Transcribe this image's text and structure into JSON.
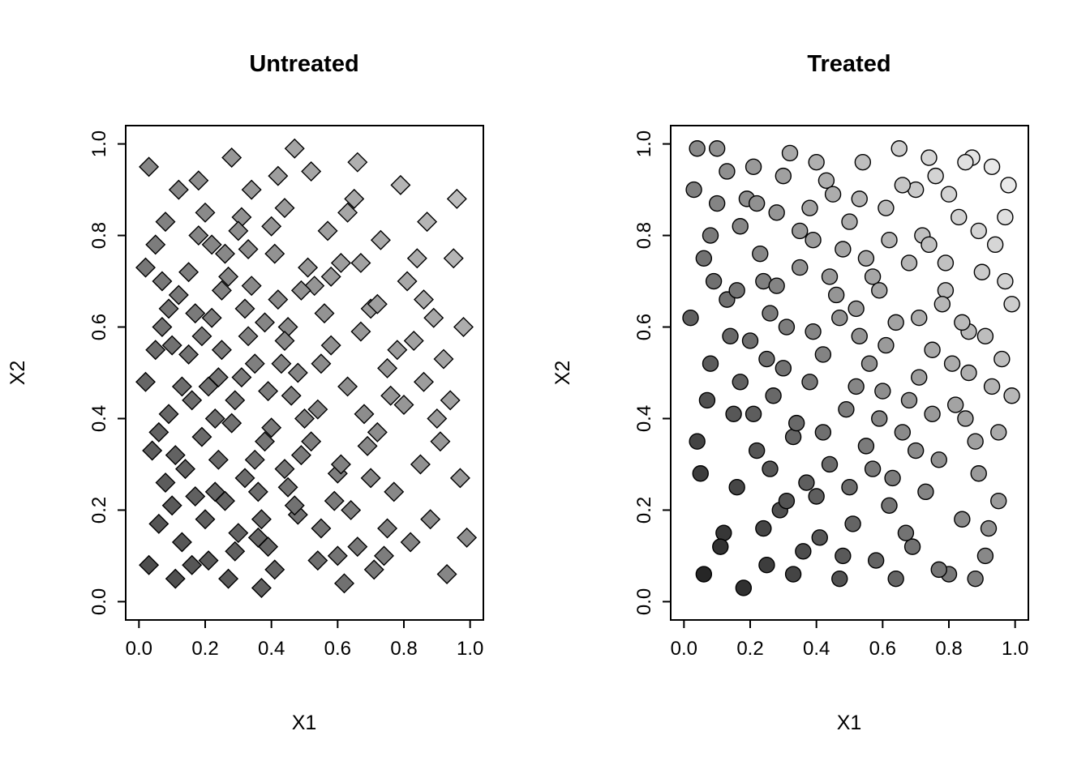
{
  "figure": {
    "background": "#ffffff",
    "outline_color": "#000000"
  },
  "chart_data": [
    {
      "type": "scatter",
      "title": "Untreated",
      "xlabel": "X1",
      "ylabel": "X2",
      "xlim": [
        0,
        1
      ],
      "ylim": [
        0,
        1
      ],
      "x_ticks": [
        "0.0",
        "0.2",
        "0.4",
        "0.6",
        "0.8",
        "1.0"
      ],
      "y_ticks": [
        "0.0",
        "0.2",
        "0.4",
        "0.6",
        "0.8",
        "1.0"
      ],
      "grid": false,
      "legend": "none",
      "marker": "diamond",
      "marker_outline": "#000000",
      "marker_size_px": 11.5,
      "shade_min_gray": 70,
      "shade_max_gray": 200,
      "shade_rule": "gray = shade_min_gray + (shade_max_gray - shade_min_gray) * (x + y) / 2 ; darker points at low x+y, lighter at high x+y",
      "points": [
        [
          0.03,
          0.95
        ],
        [
          0.08,
          0.83
        ],
        [
          0.12,
          0.67
        ],
        [
          0.05,
          0.55
        ],
        [
          0.09,
          0.41
        ],
        [
          0.14,
          0.29
        ],
        [
          0.06,
          0.17
        ],
        [
          0.11,
          0.05
        ],
        [
          0.18,
          0.92
        ],
        [
          0.22,
          0.78
        ],
        [
          0.17,
          0.63
        ],
        [
          0.24,
          0.49
        ],
        [
          0.19,
          0.36
        ],
        [
          0.26,
          0.22
        ],
        [
          0.21,
          0.09
        ],
        [
          0.28,
          0.97
        ],
        [
          0.31,
          0.84
        ],
        [
          0.27,
          0.71
        ],
        [
          0.33,
          0.58
        ],
        [
          0.29,
          0.44
        ],
        [
          0.35,
          0.31
        ],
        [
          0.3,
          0.15
        ],
        [
          0.37,
          0.03
        ],
        [
          0.34,
          0.9
        ],
        [
          0.41,
          0.76
        ],
        [
          0.38,
          0.61
        ],
        [
          0.43,
          0.52
        ],
        [
          0.4,
          0.38
        ],
        [
          0.45,
          0.25
        ],
        [
          0.39,
          0.12
        ],
        [
          0.47,
          0.99
        ],
        [
          0.44,
          0.86
        ],
        [
          0.02,
          0.73
        ],
        [
          0.07,
          0.6
        ],
        [
          0.13,
          0.47
        ],
        [
          0.04,
          0.33
        ],
        [
          0.1,
          0.21
        ],
        [
          0.16,
          0.08
        ],
        [
          0.2,
          0.85
        ],
        [
          0.25,
          0.68
        ],
        [
          0.15,
          0.54
        ],
        [
          0.23,
          0.4
        ],
        [
          0.32,
          0.27
        ],
        [
          0.36,
          0.14
        ],
        [
          0.42,
          0.66
        ],
        [
          0.46,
          0.45
        ],
        [
          0.49,
          0.32
        ],
        [
          0.48,
          0.19
        ],
        [
          0.52,
          0.94
        ],
        [
          0.57,
          0.81
        ],
        [
          0.53,
          0.69
        ],
        [
          0.58,
          0.56
        ],
        [
          0.54,
          0.42
        ],
        [
          0.6,
          0.28
        ],
        [
          0.55,
          0.16
        ],
        [
          0.62,
          0.04
        ],
        [
          0.65,
          0.88
        ],
        [
          0.61,
          0.74
        ],
        [
          0.67,
          0.59
        ],
        [
          0.63,
          0.47
        ],
        [
          0.69,
          0.34
        ],
        [
          0.64,
          0.2
        ],
        [
          0.71,
          0.07
        ],
        [
          0.66,
          0.96
        ],
        [
          0.73,
          0.79
        ],
        [
          0.7,
          0.64
        ],
        [
          0.75,
          0.51
        ],
        [
          0.72,
          0.37
        ],
        [
          0.77,
          0.24
        ],
        [
          0.74,
          0.1
        ],
        [
          0.79,
          0.91
        ],
        [
          0.81,
          0.7
        ],
        [
          0.83,
          0.57
        ],
        [
          0.8,
          0.43
        ],
        [
          0.85,
          0.3
        ],
        [
          0.82,
          0.13
        ],
        [
          0.87,
          0.83
        ],
        [
          0.89,
          0.62
        ],
        [
          0.86,
          0.48
        ],
        [
          0.91,
          0.35
        ],
        [
          0.88,
          0.18
        ],
        [
          0.93,
          0.06
        ],
        [
          0.95,
          0.75
        ],
        [
          0.92,
          0.53
        ],
        [
          0.97,
          0.27
        ],
        [
          0.94,
          0.44
        ],
        [
          0.99,
          0.14
        ],
        [
          0.96,
          0.88
        ],
        [
          0.05,
          0.78
        ],
        [
          0.12,
          0.9
        ],
        [
          0.08,
          0.26
        ],
        [
          0.15,
          0.72
        ],
        [
          0.03,
          0.08
        ],
        [
          0.19,
          0.58
        ],
        [
          0.24,
          0.31
        ],
        [
          0.09,
          0.64
        ],
        [
          0.27,
          0.05
        ],
        [
          0.21,
          0.47
        ],
        [
          0.3,
          0.81
        ],
        [
          0.17,
          0.23
        ],
        [
          0.34,
          0.69
        ],
        [
          0.25,
          0.55
        ],
        [
          0.38,
          0.35
        ],
        [
          0.29,
          0.11
        ],
        [
          0.42,
          0.93
        ],
        [
          0.33,
          0.77
        ],
        [
          0.45,
          0.6
        ],
        [
          0.37,
          0.18
        ],
        [
          0.48,
          0.5
        ],
        [
          0.41,
          0.07
        ],
        [
          0.51,
          0.73
        ],
        [
          0.44,
          0.29
        ],
        [
          0.56,
          0.63
        ],
        [
          0.5,
          0.4
        ],
        [
          0.59,
          0.22
        ],
        [
          0.54,
          0.09
        ],
        [
          0.63,
          0.85
        ],
        [
          0.58,
          0.71
        ],
        [
          0.68,
          0.41
        ],
        [
          0.61,
          0.3
        ],
        [
          0.72,
          0.65
        ],
        [
          0.66,
          0.12
        ],
        [
          0.76,
          0.45
        ],
        [
          0.7,
          0.27
        ],
        [
          0.84,
          0.75
        ],
        [
          0.78,
          0.55
        ],
        [
          0.9,
          0.4
        ],
        [
          0.98,
          0.6
        ],
        [
          0.06,
          0.37
        ],
        [
          0.13,
          0.13
        ],
        [
          0.22,
          0.62
        ],
        [
          0.31,
          0.49
        ],
        [
          0.4,
          0.82
        ],
        [
          0.49,
          0.68
        ],
        [
          0.07,
          0.7
        ],
        [
          0.16,
          0.44
        ],
        [
          0.26,
          0.76
        ],
        [
          0.35,
          0.52
        ],
        [
          0.11,
          0.32
        ],
        [
          0.2,
          0.18
        ],
        [
          0.28,
          0.39
        ],
        [
          0.36,
          0.24
        ],
        [
          0.44,
          0.57
        ],
        [
          0.52,
          0.35
        ],
        [
          0.02,
          0.48
        ],
        [
          0.1,
          0.56
        ],
        [
          0.18,
          0.8
        ],
        [
          0.23,
          0.24
        ],
        [
          0.32,
          0.64
        ],
        [
          0.39,
          0.46
        ],
        [
          0.47,
          0.21
        ],
        [
          0.55,
          0.52
        ],
        [
          0.6,
          0.1
        ],
        [
          0.67,
          0.74
        ],
        [
          0.75,
          0.16
        ],
        [
          0.86,
          0.66
        ]
      ]
    },
    {
      "type": "scatter",
      "title": "Treated",
      "xlabel": "X1",
      "ylabel": "X2",
      "xlim": [
        0,
        1
      ],
      "ylim": [
        0,
        1
      ],
      "x_ticks": [
        "0.0",
        "0.2",
        "0.4",
        "0.6",
        "0.8",
        "1.0"
      ],
      "y_ticks": [
        "0.0",
        "0.2",
        "0.4",
        "0.6",
        "0.8",
        "1.0"
      ],
      "grid": false,
      "legend": "none",
      "marker": "circle",
      "marker_outline": "#000000",
      "marker_size_px": 9.5,
      "shade_min_gray": 25,
      "shade_max_gray": 245,
      "shade_rule": "gray = shade_min_gray + (shade_max_gray - shade_min_gray) * (x + y) / 2 ; nearly black points at low x+y, nearly white at high x+y",
      "points": [
        [
          0.04,
          0.99
        ],
        [
          0.1,
          0.87
        ],
        [
          0.06,
          0.75
        ],
        [
          0.13,
          0.66
        ],
        [
          0.08,
          0.52
        ],
        [
          0.15,
          0.41
        ],
        [
          0.05,
          0.28
        ],
        [
          0.12,
          0.15
        ],
        [
          0.18,
          0.03
        ],
        [
          0.21,
          0.95
        ],
        [
          0.17,
          0.82
        ],
        [
          0.24,
          0.7
        ],
        [
          0.2,
          0.57
        ],
        [
          0.27,
          0.45
        ],
        [
          0.22,
          0.33
        ],
        [
          0.29,
          0.2
        ],
        [
          0.25,
          0.08
        ],
        [
          0.32,
          0.98
        ],
        [
          0.28,
          0.85
        ],
        [
          0.35,
          0.73
        ],
        [
          0.31,
          0.6
        ],
        [
          0.38,
          0.48
        ],
        [
          0.33,
          0.36
        ],
        [
          0.4,
          0.23
        ],
        [
          0.36,
          0.11
        ],
        [
          0.43,
          0.92
        ],
        [
          0.39,
          0.79
        ],
        [
          0.46,
          0.67
        ],
        [
          0.42,
          0.54
        ],
        [
          0.49,
          0.42
        ],
        [
          0.44,
          0.3
        ],
        [
          0.51,
          0.17
        ],
        [
          0.47,
          0.05
        ],
        [
          0.54,
          0.96
        ],
        [
          0.5,
          0.83
        ],
        [
          0.57,
          0.71
        ],
        [
          0.53,
          0.58
        ],
        [
          0.6,
          0.46
        ],
        [
          0.55,
          0.34
        ],
        [
          0.62,
          0.21
        ],
        [
          0.58,
          0.09
        ],
        [
          0.65,
          0.99
        ],
        [
          0.61,
          0.86
        ],
        [
          0.68,
          0.74
        ],
        [
          0.64,
          0.61
        ],
        [
          0.71,
          0.49
        ],
        [
          0.66,
          0.37
        ],
        [
          0.73,
          0.24
        ],
        [
          0.69,
          0.12
        ],
        [
          0.76,
          0.93
        ],
        [
          0.72,
          0.8
        ],
        [
          0.79,
          0.68
        ],
        [
          0.75,
          0.55
        ],
        [
          0.82,
          0.43
        ],
        [
          0.77,
          0.31
        ],
        [
          0.84,
          0.18
        ],
        [
          0.8,
          0.06
        ],
        [
          0.87,
          0.97
        ],
        [
          0.83,
          0.84
        ],
        [
          0.9,
          0.72
        ],
        [
          0.86,
          0.59
        ],
        [
          0.93,
          0.47
        ],
        [
          0.88,
          0.35
        ],
        [
          0.95,
          0.22
        ],
        [
          0.91,
          0.1
        ],
        [
          0.98,
          0.91
        ],
        [
          0.94,
          0.78
        ],
        [
          0.99,
          0.65
        ],
        [
          0.96,
          0.53
        ],
        [
          0.03,
          0.9
        ],
        [
          0.09,
          0.7
        ],
        [
          0.14,
          0.58
        ],
        [
          0.07,
          0.44
        ],
        [
          0.16,
          0.25
        ],
        [
          0.11,
          0.12
        ],
        [
          0.19,
          0.88
        ],
        [
          0.23,
          0.76
        ],
        [
          0.26,
          0.63
        ],
        [
          0.3,
          0.51
        ],
        [
          0.34,
          0.39
        ],
        [
          0.37,
          0.26
        ],
        [
          0.41,
          0.14
        ],
        [
          0.45,
          0.89
        ],
        [
          0.48,
          0.77
        ],
        [
          0.52,
          0.64
        ],
        [
          0.56,
          0.52
        ],
        [
          0.59,
          0.4
        ],
        [
          0.63,
          0.27
        ],
        [
          0.67,
          0.15
        ],
        [
          0.7,
          0.9
        ],
        [
          0.74,
          0.78
        ],
        [
          0.78,
          0.65
        ],
        [
          0.81,
          0.52
        ],
        [
          0.85,
          0.4
        ],
        [
          0.89,
          0.28
        ],
        [
          0.92,
          0.16
        ],
        [
          0.97,
          0.84
        ],
        [
          0.02,
          0.62
        ],
        [
          0.13,
          0.94
        ],
        [
          0.22,
          0.87
        ],
        [
          0.28,
          0.69
        ],
        [
          0.35,
          0.81
        ],
        [
          0.44,
          0.71
        ],
        [
          0.53,
          0.88
        ],
        [
          0.62,
          0.79
        ],
        [
          0.71,
          0.62
        ],
        [
          0.8,
          0.89
        ],
        [
          0.89,
          0.81
        ],
        [
          0.06,
          0.06
        ],
        [
          0.17,
          0.48
        ],
        [
          0.26,
          0.29
        ],
        [
          0.33,
          0.06
        ],
        [
          0.42,
          0.37
        ],
        [
          0.5,
          0.25
        ],
        [
          0.59,
          0.68
        ],
        [
          0.68,
          0.44
        ],
        [
          0.77,
          0.07
        ],
        [
          0.86,
          0.5
        ],
        [
          0.95,
          0.37
        ],
        [
          0.04,
          0.35
        ],
        [
          0.21,
          0.41
        ],
        [
          0.3,
          0.93
        ],
        [
          0.39,
          0.59
        ],
        [
          0.48,
          0.1
        ],
        [
          0.57,
          0.29
        ],
        [
          0.66,
          0.91
        ],
        [
          0.75,
          0.41
        ],
        [
          0.84,
          0.61
        ],
        [
          0.93,
          0.95
        ],
        [
          0.1,
          0.99
        ],
        [
          0.25,
          0.53
        ],
        [
          0.4,
          0.96
        ],
        [
          0.55,
          0.75
        ],
        [
          0.7,
          0.33
        ],
        [
          0.85,
          0.96
        ],
        [
          0.99,
          0.45
        ],
        [
          0.08,
          0.8
        ],
        [
          0.24,
          0.16
        ],
        [
          0.38,
          0.86
        ],
        [
          0.52,
          0.47
        ],
        [
          0.64,
          0.05
        ],
        [
          0.79,
          0.74
        ],
        [
          0.91,
          0.58
        ],
        [
          0.16,
          0.68
        ],
        [
          0.31,
          0.22
        ],
        [
          0.47,
          0.62
        ],
        [
          0.61,
          0.56
        ],
        [
          0.74,
          0.97
        ],
        [
          0.88,
          0.05
        ],
        [
          0.97,
          0.7
        ]
      ]
    }
  ]
}
